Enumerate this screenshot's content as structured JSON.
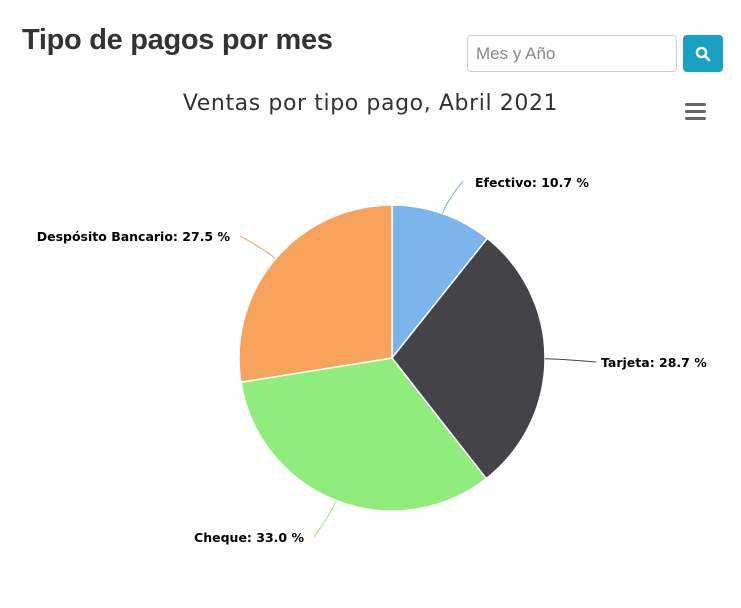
{
  "header": {
    "title": "Tipo de pagos por mes"
  },
  "search": {
    "placeholder": "Mes y Año",
    "button_icon": "search-icon"
  },
  "chart_menu": {
    "icon": "hamburger-menu-icon"
  },
  "chart_data": {
    "type": "pie",
    "title": "Ventas por tipo pago, Abril 2021",
    "slices": [
      {
        "name": "Efectivo",
        "value": 10.7,
        "label": "Efectivo: 10.7 %",
        "color": "#7cb5ec"
      },
      {
        "name": "Tarjeta",
        "value": 28.7,
        "label": "Tarjeta: 28.7 %",
        "color": "#434348"
      },
      {
        "name": "Cheque",
        "value": 33.0,
        "label": "Cheque: 33.0 %",
        "color": "#90ed7d"
      },
      {
        "name": "Despósito Bancario",
        "value": 27.5,
        "label": "Despósito Bancario: 27.5 %",
        "color": "#f7a35c"
      }
    ]
  }
}
